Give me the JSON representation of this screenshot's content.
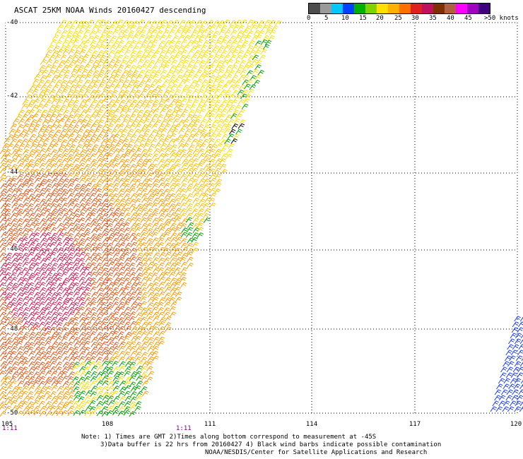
{
  "title": "ASCAT 25KM NOAA Winds 20160427 descending",
  "legend": {
    "colors": [
      "#4d4d4d",
      "#9a9a9a",
      "#00c8ff",
      "#0040ff",
      "#00b000",
      "#7fd400",
      "#ffe000",
      "#ffb000",
      "#ff7000",
      "#e02020",
      "#c01060",
      "#803000",
      "#b06040",
      "#ff00ff",
      "#a000c0",
      "#400080"
    ],
    "labels": [
      "0",
      "5",
      "10",
      "15",
      "20",
      "25",
      "30",
      "35",
      "40",
      "45",
      ">50 knots"
    ]
  },
  "map": {
    "lat_labels": [
      "-40",
      "-42",
      "-44",
      "-46",
      "-48",
      "-50"
    ],
    "lon_labels": [
      "105",
      "108",
      "111",
      "114",
      "117",
      "120"
    ],
    "time_labels": [
      "1:11",
      "1:11"
    ]
  },
  "notes": [
    "Note: 1) Times are GMT 2)Times along bottom correspond to measurement at -45S",
    "3)Data buffer is 22 hrs from 20160427 4) Black wind barbs indicate possible contamination",
    "NOAA/NESDIS/Center for Satellite Applications and Research"
  ]
}
